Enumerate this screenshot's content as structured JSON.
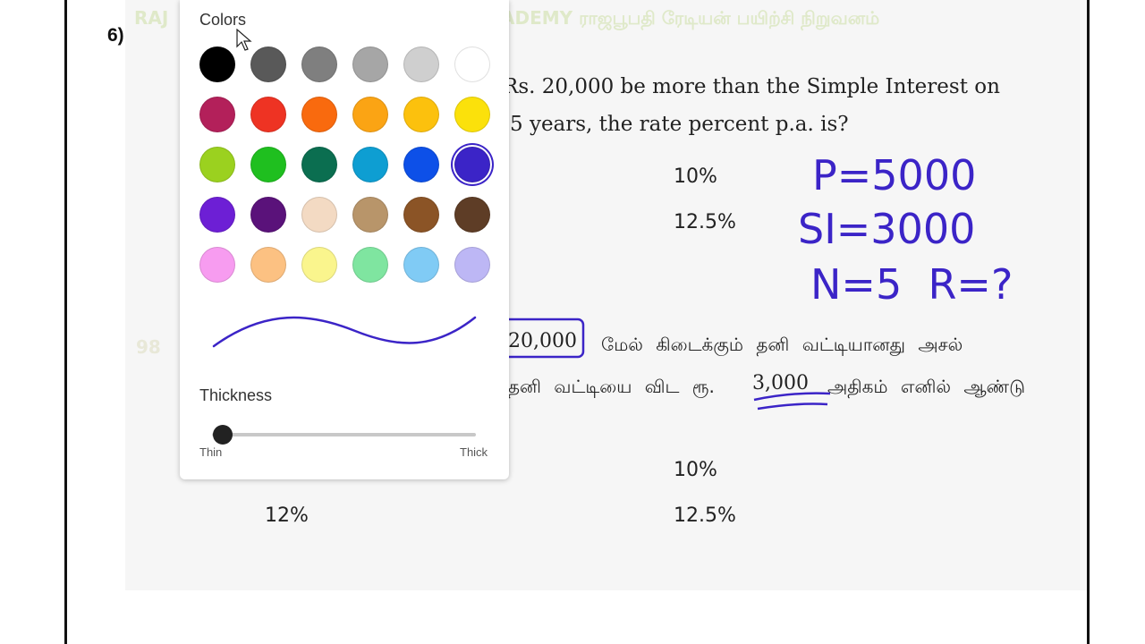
{
  "document": {
    "question_number": "6)",
    "watermark_left": "RAJ",
    "watermark_right": "ADEMY ராஜபூபதி ரேடியன் பயிற்சி நிறுவனம்",
    "english_line1": "Rs. 20,000 be more than the Simple Interest on",
    "english_line2": "5 years, the rate percent p.a. is?",
    "english_options": [
      "10%",
      "12.5%"
    ],
    "page_number": "98",
    "tamil_line1_amount": "20,000",
    "tamil_line1_rest": "மேல் கிடைக்கும் தனி வட்டியானது அசல்",
    "tamil_line2_pre": "தனி வட்டியை விட ரூ.",
    "tamil_line2_amount": "3,000",
    "tamil_line2_post": "அதிகம் எனில் ஆண்டு",
    "tamil_options": [
      "10%",
      "12%",
      "12.5%"
    ]
  },
  "annotations": {
    "ink_color": "#3b24c7",
    "line1": "P=5000",
    "line2": "SI=3000",
    "line3": "N=5  R=?"
  },
  "color_picker": {
    "title": "Colors",
    "thickness_label": "Thickness",
    "thin_label": "Thin",
    "thick_label": "Thick",
    "thickness_value": 0,
    "selected_color": "#3b24c7",
    "colors": [
      "#000000",
      "#595959",
      "#7f7f7f",
      "#a6a6a6",
      "#cfcfcf",
      "#ffffff",
      "#b3205a",
      "#ee3323",
      "#f96a0e",
      "#fba414",
      "#fcc10d",
      "#fbe10b",
      "#9bd11f",
      "#1fbf1f",
      "#0b6e50",
      "#0e9ed2",
      "#0d50e8",
      "#3b24c7",
      "#6d1fd5",
      "#5a127a",
      "#f3dac3",
      "#b8956a",
      "#8b5426",
      "#5e3d26",
      "#f79cf0",
      "#fcc182",
      "#faf58d",
      "#7fe5a0",
      "#80cbf5",
      "#bdb7f5"
    ]
  }
}
